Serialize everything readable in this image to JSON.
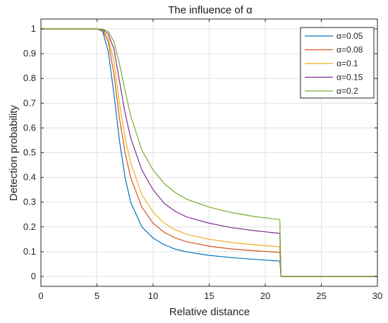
{
  "chart_data": {
    "type": "line",
    "title": "The influence of α",
    "xlabel": "Relative distance",
    "ylabel": "Detection probability",
    "xlim": [
      0,
      30
    ],
    "ylim": [
      -0.04,
      1.04
    ],
    "xticks": [
      0,
      5,
      10,
      15,
      20,
      25,
      30
    ],
    "yticks": [
      0,
      0.1,
      0.2,
      0.3,
      0.4,
      0.5,
      0.6,
      0.7,
      0.8,
      0.9,
      1
    ],
    "xtick_labels": [
      "0",
      "5",
      "10",
      "15",
      "20",
      "25",
      "30"
    ],
    "ytick_labels": [
      "0",
      "0.1",
      "0.2",
      "0.3",
      "0.4",
      "0.5",
      "0.6",
      "0.7",
      "0.8",
      "0.9",
      "1"
    ],
    "grid": true,
    "legend_position": "top-right",
    "series": [
      {
        "name": "α=0.05",
        "color": "#0072BD",
        "x": [
          0,
          5,
          5.5,
          6,
          6.5,
          7,
          7.5,
          8,
          9,
          10,
          11,
          12,
          13,
          15,
          17,
          19,
          21.3,
          21.4,
          30
        ],
        "y": [
          1,
          1,
          0.99,
          0.91,
          0.74,
          0.55,
          0.4,
          0.3,
          0.2,
          0.155,
          0.128,
          0.11,
          0.099,
          0.085,
          0.076,
          0.069,
          0.062,
          0,
          0
        ]
      },
      {
        "name": "α=0.08",
        "color": "#D95319",
        "x": [
          0,
          5,
          5.5,
          6,
          6.5,
          7,
          7.5,
          8,
          9,
          10,
          11,
          12,
          13,
          15,
          17,
          19,
          21.3,
          21.4,
          30
        ],
        "y": [
          1,
          1,
          0.995,
          0.95,
          0.82,
          0.64,
          0.5,
          0.4,
          0.28,
          0.215,
          0.178,
          0.155,
          0.14,
          0.122,
          0.111,
          0.104,
          0.097,
          0,
          0
        ]
      },
      {
        "name": "α=0.1",
        "color": "#EDB120",
        "x": [
          0,
          5,
          5.5,
          6,
          6.5,
          7,
          7.5,
          8,
          9,
          10,
          11,
          12,
          13,
          15,
          17,
          19,
          21.3,
          21.4,
          30
        ],
        "y": [
          1,
          1,
          0.997,
          0.965,
          0.87,
          0.7,
          0.56,
          0.46,
          0.33,
          0.26,
          0.215,
          0.188,
          0.17,
          0.15,
          0.137,
          0.128,
          0.12,
          0,
          0
        ]
      },
      {
        "name": "α=0.15",
        "color": "#7E2F8E",
        "x": [
          0,
          5,
          5.5,
          6,
          6.5,
          7,
          7.5,
          8,
          9,
          10,
          11,
          12,
          13,
          15,
          17,
          19,
          21.3,
          21.4,
          30
        ],
        "y": [
          1,
          1,
          0.998,
          0.98,
          0.92,
          0.79,
          0.66,
          0.56,
          0.43,
          0.35,
          0.295,
          0.262,
          0.24,
          0.215,
          0.197,
          0.185,
          0.174,
          0,
          0
        ]
      },
      {
        "name": "α=0.2",
        "color": "#77AC30",
        "x": [
          0,
          5,
          5.5,
          6,
          6.5,
          7,
          7.5,
          8,
          9,
          10,
          11,
          12,
          13,
          15,
          17,
          19,
          21.3,
          21.4,
          30
        ],
        "y": [
          1,
          1,
          0.999,
          0.99,
          0.95,
          0.86,
          0.75,
          0.65,
          0.51,
          0.43,
          0.375,
          0.338,
          0.312,
          0.28,
          0.258,
          0.242,
          0.23,
          0,
          0
        ]
      }
    ]
  }
}
